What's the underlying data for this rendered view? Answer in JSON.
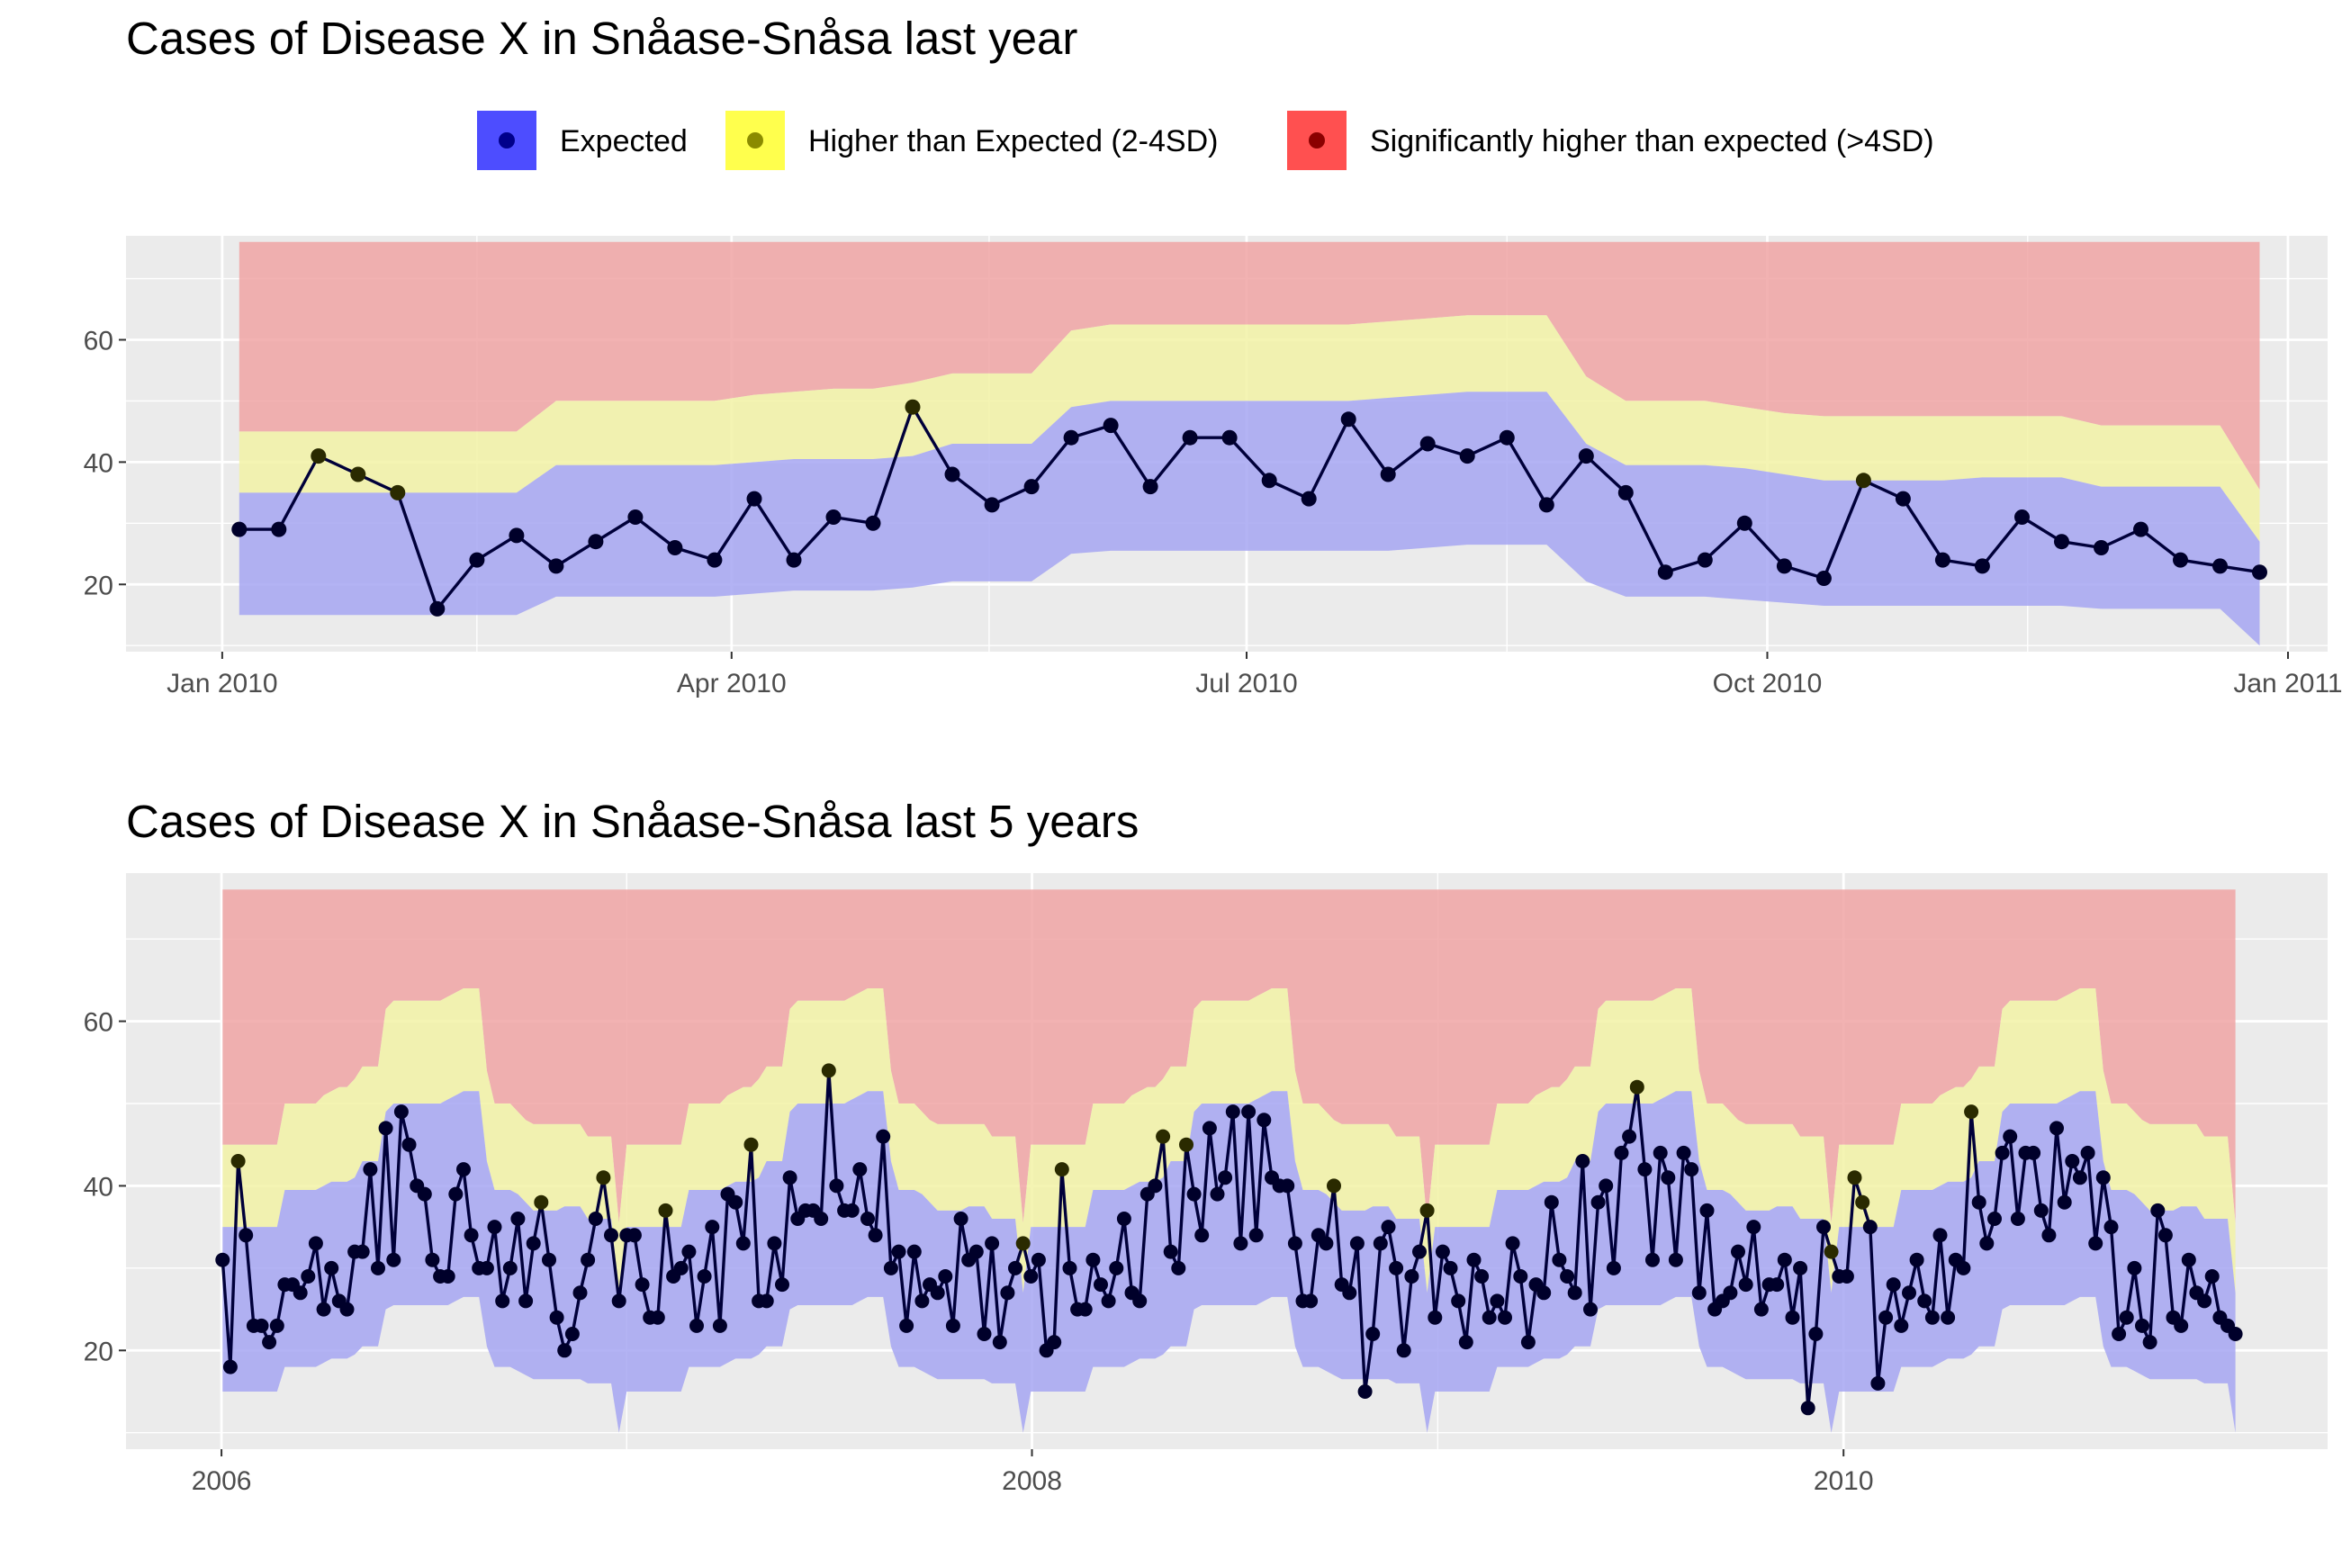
{
  "legend": {
    "items": [
      {
        "label": "Expected",
        "fill": "#4D4DFF",
        "point": "#00008B"
      },
      {
        "label": "Higher than Expected (2-4SD)",
        "fill": "#FFFF4D",
        "point": "#8B8B00"
      },
      {
        "label": "Significantly higher than expected (>4SD)",
        "fill": "#FF5050",
        "point": "#8B0000"
      }
    ]
  },
  "colors": {
    "panel_bg": "#EBEBEB",
    "grid": "#FFFFFF",
    "expected_band": "#A6A6F2",
    "higher_band": "#F2F2A6",
    "significant_band": "#F0A4A4",
    "line": "#00003A",
    "point_expected": "#00002A",
    "point_higher": "#2A2A00"
  },
  "chart_data": [
    {
      "type": "line",
      "title": "Cases of Disease X in Snåase-Snåsa last year",
      "xlabel": "",
      "ylabel": "",
      "x_ticks": [
        {
          "label": "Jan 2010",
          "date": "2010-01-01"
        },
        {
          "label": "Apr 2010",
          "date": "2010-04-01"
        },
        {
          "label": "Jul 2010",
          "date": "2010-07-01"
        },
        {
          "label": "Oct 2010",
          "date": "2010-10-01"
        },
        {
          "label": "Jan 2011",
          "date": "2011-01-01"
        }
      ],
      "y_ticks": [
        20,
        40,
        60
      ],
      "xlim": [
        "2009-12-15",
        "2011-01-08"
      ],
      "ylim": [
        9,
        77
      ],
      "grid": true,
      "legend_position": "top",
      "band_top": 76,
      "series": [
        {
          "name": "Cases",
          "x_start": "2010-01-04",
          "step_days": 7,
          "values": [
            29,
            29,
            41,
            38,
            35,
            16,
            24,
            28,
            23,
            27,
            31,
            26,
            24,
            34,
            24,
            31,
            30,
            49,
            38,
            33,
            36,
            44,
            46,
            36,
            44,
            44,
            37,
            34,
            47,
            38,
            43,
            41,
            44,
            33,
            41,
            35,
            22,
            24,
            30,
            23,
            21,
            37,
            34,
            24,
            23,
            31,
            27,
            26,
            29,
            24,
            23,
            22
          ],
          "status": [
            "e",
            "e",
            "h",
            "h",
            "h",
            "e",
            "e",
            "e",
            "e",
            "e",
            "e",
            "e",
            "e",
            "e",
            "e",
            "e",
            "e",
            "h",
            "e",
            "e",
            "e",
            "e",
            "e",
            "e",
            "e",
            "e",
            "e",
            "e",
            "e",
            "e",
            "e",
            "e",
            "e",
            "e",
            "e",
            "e",
            "e",
            "e",
            "e",
            "e",
            "e",
            "h",
            "e",
            "e",
            "e",
            "e",
            "e",
            "e",
            "e",
            "e",
            "e",
            "e"
          ]
        },
        {
          "name": "Expected lower",
          "x_start": "2010-01-04",
          "step_days": 7,
          "values": [
            15,
            15,
            15,
            15,
            15,
            15,
            15,
            15,
            18,
            18,
            18,
            18,
            18,
            18.5,
            19,
            19,
            19,
            19.5,
            20.5,
            20.5,
            20.5,
            25,
            25.5,
            25.5,
            25.5,
            25.5,
            25.5,
            25.5,
            25.5,
            25.5,
            26,
            26.5,
            26.5,
            26.5,
            20.5,
            18,
            18,
            18,
            17.5,
            17,
            16.5,
            16.5,
            16.5,
            16.5,
            16.5,
            16.5,
            16.5,
            16,
            16,
            16,
            16,
            10
          ]
        },
        {
          "name": "Expected upper (2SD)",
          "x_start": "2010-01-04",
          "step_days": 7,
          "values": [
            35,
            35,
            35,
            35,
            35,
            35,
            35,
            35,
            39.5,
            39.5,
            39.5,
            39.5,
            39.5,
            40,
            40.5,
            40.5,
            40.5,
            41,
            43,
            43,
            43,
            49,
            50,
            50,
            50,
            50,
            50,
            50,
            50,
            50.5,
            51,
            51.5,
            51.5,
            51.5,
            43,
            39.5,
            39.5,
            39.5,
            39,
            38,
            37,
            37,
            37,
            37,
            37.5,
            37.5,
            37.5,
            36,
            36,
            36,
            36,
            27
          ]
        },
        {
          "name": "Higher upper (4SD)",
          "x_start": "2010-01-04",
          "step_days": 7,
          "values": [
            45,
            45,
            45,
            45,
            45,
            45,
            45,
            45,
            50,
            50,
            50,
            50,
            50,
            51,
            51.5,
            52,
            52,
            53,
            54.5,
            54.5,
            54.5,
            61.5,
            62.5,
            62.5,
            62.5,
            62.5,
            62.5,
            62.5,
            62.5,
            63,
            63.5,
            64,
            64,
            64,
            54,
            50,
            50,
            50,
            49,
            48,
            47.5,
            47.5,
            47.5,
            47.5,
            47.5,
            47.5,
            47.5,
            46,
            46,
            46,
            46,
            35.5
          ]
        }
      ]
    },
    {
      "type": "line",
      "title": "Cases of Disease X in Snåase-Snåsa last 5 years",
      "xlabel": "",
      "ylabel": "",
      "x_ticks": [
        {
          "label": "2006",
          "date": "2006-01-01"
        },
        {
          "label": "2008",
          "date": "2008-01-01"
        },
        {
          "label": "2010",
          "date": "2010-01-01"
        }
      ],
      "y_ticks": [
        20,
        40,
        60
      ],
      "xlim": [
        "2005-10-07",
        "2011-03-13"
      ],
      "ylim": [
        8,
        78
      ],
      "grid": true,
      "band_top": 76,
      "series": [
        {
          "name": "Cases",
          "x_start": "2006-01-02",
          "step_days": 7,
          "values": [
            31,
            18,
            43,
            34,
            23,
            23,
            21,
            23,
            28,
            28,
            27,
            29,
            33,
            25,
            30,
            26,
            25,
            32,
            32,
            42,
            30,
            47,
            31,
            49,
            45,
            40,
            39,
            31,
            29,
            29,
            39,
            42,
            34,
            30,
            30,
            35,
            26,
            30,
            36,
            26,
            33,
            38,
            31,
            24,
            20,
            22,
            27,
            31,
            36,
            41,
            34,
            26,
            34,
            34,
            28,
            24,
            24,
            37,
            29,
            30,
            32,
            23,
            29,
            35,
            23,
            39,
            38,
            33,
            45,
            26,
            26,
            33,
            28,
            41,
            36,
            37,
            37,
            36,
            54,
            40,
            37,
            37,
            42,
            36,
            34,
            46,
            30,
            32,
            23,
            32,
            26,
            28,
            27,
            29,
            23,
            36,
            31,
            32,
            22,
            33,
            21,
            27,
            30,
            33,
            29,
            31,
            20,
            21,
            42,
            30,
            25,
            25,
            31,
            28,
            26,
            30,
            36,
            27,
            26,
            39,
            40,
            46,
            32,
            30,
            45,
            39,
            34,
            47,
            39,
            41,
            49,
            33,
            49,
            34,
            48,
            41,
            40,
            40,
            33,
            26,
            26,
            34,
            33,
            40,
            28,
            27,
            33,
            15,
            22,
            33,
            35,
            30,
            20,
            29,
            32,
            37,
            24,
            32,
            30,
            26,
            21,
            31,
            29,
            24,
            26,
            24,
            33,
            29,
            21,
            28,
            27,
            38,
            31,
            29,
            27,
            43,
            25,
            38,
            40,
            30,
            44,
            46,
            52,
            42,
            31,
            44,
            41,
            31,
            44,
            42,
            27,
            37,
            25,
            26,
            27,
            32,
            28,
            35,
            25,
            28,
            28,
            31,
            24,
            30,
            13,
            22,
            35,
            32,
            29,
            29,
            41,
            38,
            35,
            16,
            24,
            28,
            23,
            27,
            31,
            26,
            24,
            34,
            24,
            31,
            30,
            49,
            38,
            33,
            36,
            44,
            46,
            36,
            44,
            44,
            37,
            34,
            47,
            38,
            43,
            41,
            44,
            33,
            41,
            35,
            22,
            24,
            30,
            23,
            21,
            37,
            34,
            24,
            23,
            31,
            27,
            26,
            29,
            24,
            23,
            22
          ]
        }
      ]
    }
  ]
}
